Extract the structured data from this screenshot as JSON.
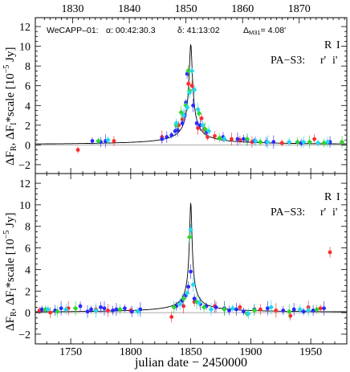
{
  "chart_data": [
    {
      "type": "scatter",
      "panel": "top",
      "annotation": {
        "source": "WeCAPP–01:",
        "alpha": "α: 00:42:30.3",
        "delta": "δ: 41:13:02",
        "dist_prefix": "Δ",
        "dist_sub": "M31",
        "dist_value": "= 4.08'"
      },
      "legend": {
        "row1": [
          {
            "text": "R",
            "color": "#ff2a2a"
          },
          {
            "text": "I",
            "color": "#2a2aff"
          }
        ],
        "row2_prefix": "PA−S3:",
        "row2": [
          {
            "text": "r'",
            "color": "#2dd62d"
          },
          {
            "text": "i'",
            "color": "#22d8ee"
          }
        ]
      },
      "xlabel": "",
      "top_axis_ticks": [
        "1830",
        "1840",
        "1850",
        "1860",
        "1870"
      ],
      "top_axis_range": [
        1823.4,
        1878.4
      ],
      "x_range": [
        1720.5,
        1980.0
      ],
      "ylim": [
        -2.9,
        12.9
      ],
      "yticks": [
        "−2",
        "0",
        "2",
        "4",
        "6",
        "8",
        "10",
        "12"
      ],
      "model_curve": {
        "t0": 1850.0,
        "peak": 10.2,
        "tE": 0.13,
        "baseline": 0.0
      },
      "series": [
        {
          "name": "R",
          "color": "#ff2a2a",
          "x": [
            1756,
            1786,
            1826,
            1840,
            1843,
            1848,
            1851,
            1856,
            1859,
            1861,
            1864,
            1870,
            1884,
            1891,
            1901,
            1926,
            1953
          ],
          "y": [
            -0.5,
            0.4,
            0.8,
            2.0,
            2.6,
            6.2,
            6.0,
            1.7,
            2.7,
            1.6,
            0.8,
            0.9,
            0.6,
            0.5,
            0.3,
            0.2,
            0.6
          ]
        },
        {
          "name": "I",
          "color": "#2a2aff",
          "x": [
            1768,
            1775,
            1779,
            1826,
            1830,
            1834,
            1837,
            1839,
            1843,
            1845,
            1846,
            1847,
            1852,
            1855,
            1858,
            1863,
            1877,
            1889,
            1894,
            1897,
            1903,
            1913,
            1919,
            1942,
            1966
          ],
          "y": [
            0.4,
            0.3,
            0.4,
            0.6,
            0.8,
            1.0,
            1.4,
            1.5,
            2.2,
            3.0,
            4.3,
            7.2,
            4.0,
            2.2,
            2.0,
            1.3,
            0.8,
            0.6,
            0.6,
            0.5,
            0.4,
            0.3,
            0.3,
            0.2,
            0.3
          ]
        },
        {
          "name": "r'",
          "color": "#2dd62d",
          "x": [
            1773,
            1838,
            1842,
            1846,
            1848,
            1849,
            1857,
            1862,
            1874,
            1897,
            1908,
            1939,
            1949,
            1961,
            1976
          ],
          "y": [
            0.4,
            2.0,
            3.3,
            4.0,
            7.5,
            5.5,
            3.2,
            1.6,
            0.7,
            0.6,
            0.3,
            0.3,
            0.3,
            0.2,
            0.3
          ]
        },
        {
          "name": "i'",
          "color": "#22d8ee",
          "x": [
            1781,
            1838,
            1844,
            1847,
            1849,
            1851,
            1853,
            1856,
            1860,
            1865,
            1878,
            1904,
            1914,
            1932,
            1944,
            1956,
            1964
          ],
          "y": [
            0.5,
            2.2,
            3.0,
            3.8,
            5.3,
            7.5,
            5.6,
            3.6,
            2.0,
            1.4,
            0.6,
            0.4,
            0.3,
            0.3,
            0.3,
            0.2,
            0.3
          ]
        }
      ]
    },
    {
      "type": "scatter",
      "panel": "bottom",
      "legend": {
        "row1": [
          {
            "text": "R",
            "color": "#ff2a2a"
          },
          {
            "text": "I",
            "color": "#2a2aff"
          }
        ],
        "row2_prefix": "PA−S3:",
        "row2": [
          {
            "text": "r'",
            "color": "#2dd62d"
          },
          {
            "text": "i'",
            "color": "#22d8ee"
          }
        ]
      },
      "xlabel": "julian date − 2450000",
      "x_range": [
        1720.5,
        1980.0
      ],
      "xticks": [
        "1750",
        "1800",
        "1850",
        "1900",
        "1950"
      ],
      "ylim": [
        -2.9,
        12.9
      ],
      "yticks": [
        "−2",
        "0",
        "2",
        "4",
        "6",
        "8",
        "10",
        "12"
      ],
      "model_curve": {
        "t0": 1850.0,
        "peak": 10.2,
        "tE": 0.13,
        "baseline": 0.0
      },
      "series": [
        {
          "name": "R",
          "color": "#ff2a2a",
          "x": [
            1724,
            1733,
            1748,
            1771,
            1781,
            1800,
            1834,
            1844,
            1853,
            1870,
            1891,
            1908,
            1921,
            1933,
            1948,
            1958,
            1966
          ],
          "y": [
            0.2,
            0.0,
            0.4,
            0.3,
            0.2,
            0.2,
            -0.4,
            0.6,
            1.0,
            0.6,
            0.5,
            0.3,
            0.2,
            -0.3,
            0.5,
            0.4,
            5.6
          ]
        },
        {
          "name": "I",
          "color": "#2a2aff",
          "x": [
            1726,
            1737,
            1742,
            1758,
            1764,
            1767,
            1775,
            1778,
            1785,
            1788,
            1795,
            1801,
            1808,
            1838,
            1843,
            1846,
            1848,
            1850,
            1853,
            1858,
            1863,
            1871,
            1878,
            1882,
            1888,
            1894,
            1903,
            1914,
            1927,
            1936,
            1944,
            1952,
            1961
          ],
          "y": [
            0.3,
            0.2,
            0.4,
            0.6,
            0.1,
            0.3,
            0.5,
            0.4,
            0.2,
            0.3,
            0.4,
            0.1,
            0.3,
            0.6,
            1.1,
            1.6,
            2.4,
            3.8,
            1.3,
            0.8,
            0.6,
            0.5,
            0.4,
            0.2,
            0.3,
            0.1,
            0.3,
            0.4,
            0.2,
            0.3,
            0.1,
            0.2,
            0.4
          ]
        },
        {
          "name": "r'",
          "color": "#2dd62d",
          "x": [
            1729,
            1739,
            1754,
            1791,
            1836,
            1844,
            1849,
            1855,
            1861,
            1878,
            1897,
            1903,
            1932,
            1955
          ],
          "y": [
            0.3,
            0.1,
            0.4,
            0.3,
            0.5,
            1.3,
            7.0,
            1.0,
            0.5,
            0.3,
            -0.1,
            0.2,
            0.1,
            0.3
          ]
        },
        {
          "name": "i'",
          "color": "#22d8ee",
          "x": [
            1731,
            1746,
            1771,
            1806,
            1841,
            1847,
            1850,
            1852,
            1857,
            1867,
            1885,
            1898,
            1917,
            1941,
            1948
          ],
          "y": [
            0.3,
            0.3,
            0.2,
            0.1,
            0.8,
            1.8,
            7.7,
            2.6,
            0.9,
            0.3,
            0.4,
            -0.1,
            0.5,
            0.3,
            0.2
          ]
        }
      ]
    }
  ],
  "shared_ylabel_parts": {
    "a": "ΔF",
    "a_sub": "R",
    "b": ", ΔF",
    "b_sub": "I",
    "c": "*scale [10",
    "c_sup": "−5",
    "d": " Jy]"
  }
}
